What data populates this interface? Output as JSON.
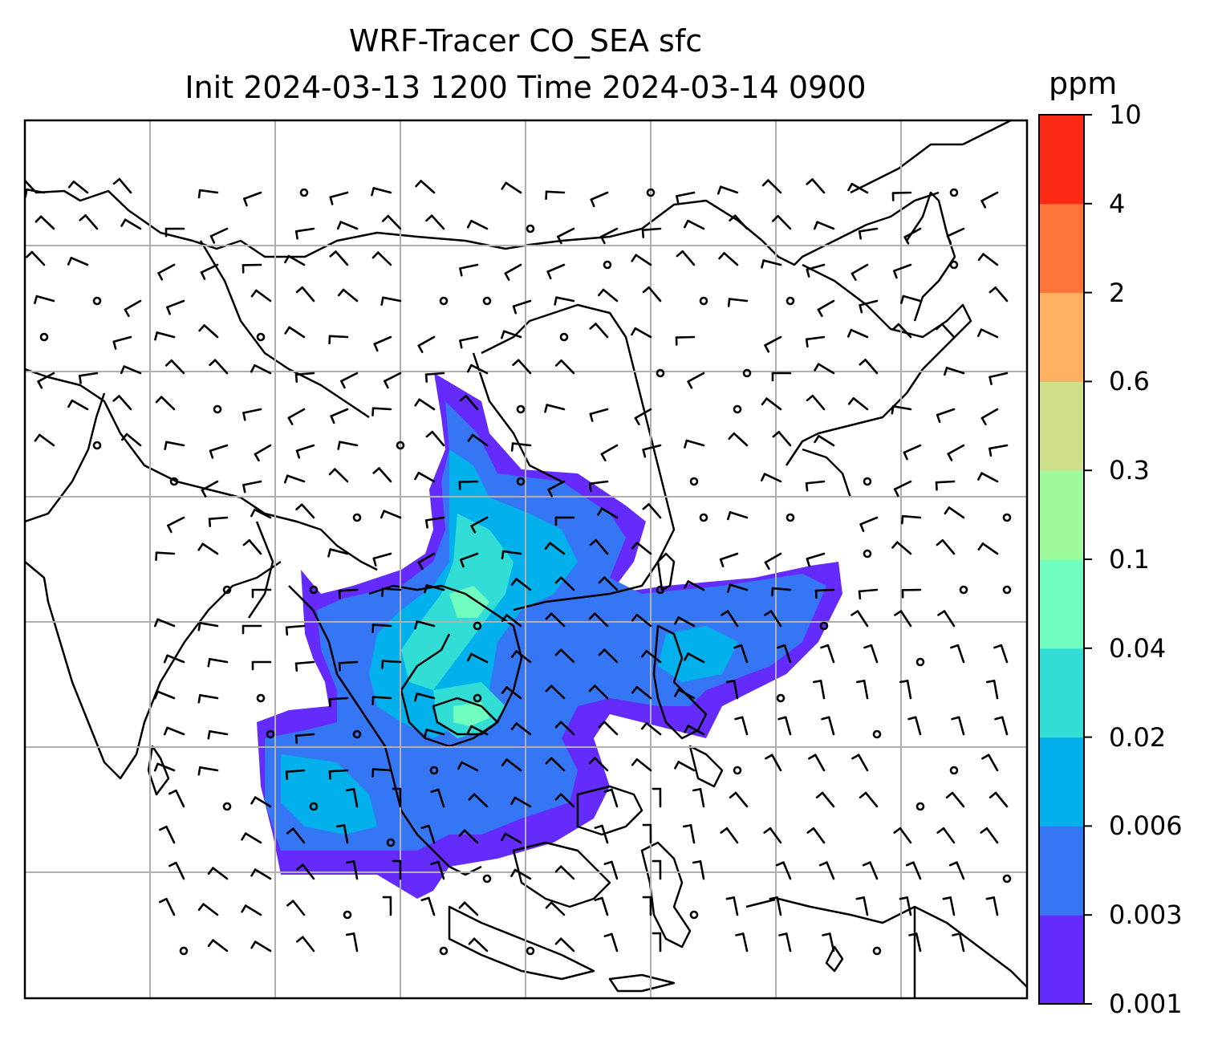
{
  "title": {
    "line1": "WRF-Tracer CO_SEA sfc",
    "line2": "Init 2024-03-13 1200 Time 2024-03-14 0900"
  },
  "colorbar": {
    "unit": "ppm",
    "levels": [
      "0.001",
      "0.003",
      "0.006",
      "0.02",
      "0.04",
      "0.1",
      "0.3",
      "0.6",
      "2",
      "4",
      "10"
    ],
    "colors": [
      "#652bfd",
      "#3476f4",
      "#02b1ec",
      "#32ddd5",
      "#6ffdc0",
      "#9dfb9b",
      "#cfe08b",
      "#fdaf62",
      "#fd743b",
      "#fd2a16"
    ]
  },
  "chart_data": {
    "type": "heatmap",
    "title": "WRF-Tracer CO_SEA sfc\nInit 2024-03-13 1200 Time 2024-03-14 0900",
    "variable": "CO_SEA sfc",
    "unit": "ppm",
    "colorbar_levels": [
      0.001,
      0.003,
      0.006,
      0.02,
      0.04,
      0.1,
      0.3,
      0.6,
      2,
      4,
      10
    ],
    "overlays": [
      "wind barbs",
      "coastlines and country borders",
      "lat/lon gridlines"
    ],
    "grid": true
  }
}
